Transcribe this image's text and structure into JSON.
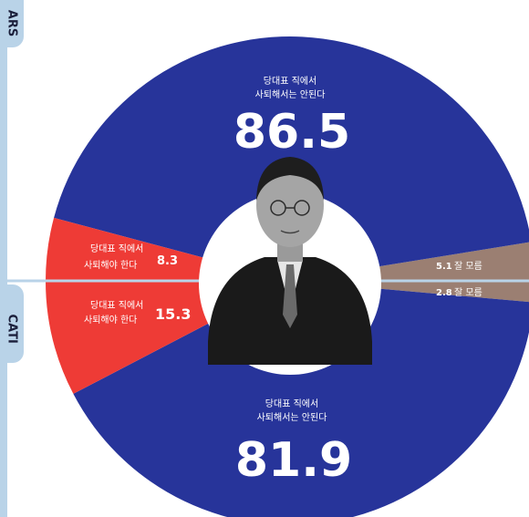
{
  "tabs": {
    "top": "ARS",
    "bottom": "CATI"
  },
  "chart_data": [
    {
      "type": "pie",
      "panel": "ARS",
      "categories": [
        "당대표 직에서 사퇴해서는 안된다",
        "당대표 직에서 사퇴해야 한다",
        "잘 모름"
      ],
      "values": [
        86.5,
        8.3,
        5.1
      ]
    },
    {
      "type": "pie",
      "panel": "CATI",
      "categories": [
        "당대표 직에서 사퇴해서는 안된다",
        "당대표 직에서 사퇴해야 한다",
        "잘 모름"
      ],
      "values": [
        81.9,
        15.3,
        2.8
      ]
    }
  ],
  "labels": {
    "ars_no_line1": "당대표 직에서",
    "ars_no_line2": "사퇴해서는 안된다",
    "ars_no_value": "86.5",
    "ars_yes_line1": "당대표 직에서",
    "ars_yes_line2": "사퇴해야 한다",
    "ars_yes_value": "8.3",
    "ars_dk_value": "5.1",
    "ars_dk_label": "잘 모름",
    "cati_no_line1": "당대표 직에서",
    "cati_no_line2": "사퇴해서는 안된다",
    "cati_no_value": "81.9",
    "cati_yes_line1": "당대표 직에서",
    "cati_yes_line2": "사퇴해야 한다",
    "cati_yes_value": "15.3",
    "cati_dk_value": "2.8",
    "cati_dk_label": "잘 모름"
  },
  "colors": {
    "no": "#27349a",
    "yes": "#ee3b36",
    "dk": "#9b7f72",
    "divider": "#b9d3e8",
    "tab": "#b9d3e8"
  }
}
